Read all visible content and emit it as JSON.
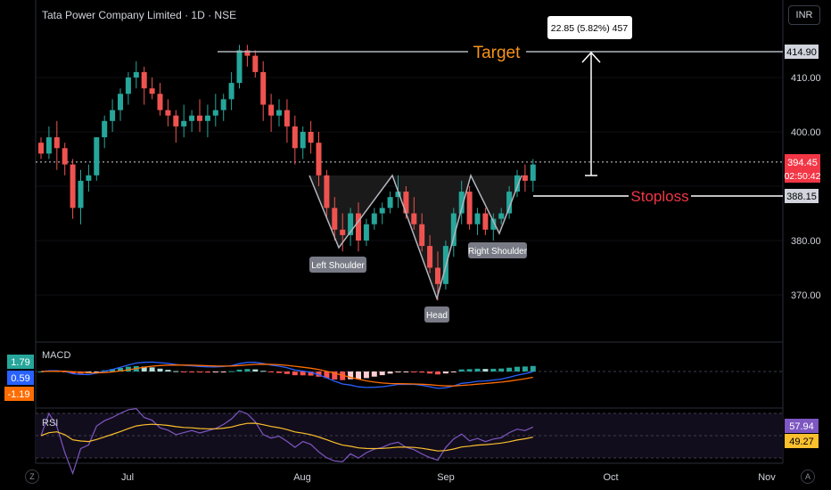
{
  "header": {
    "title": "Tata Power Company Limited · 1D · NSE"
  },
  "currency_button": "INR",
  "corner_left": "Z",
  "corner_right": "A",
  "colors": {
    "up": "#26a69a",
    "down": "#ef5350",
    "macd": "#2962ff",
    "signal": "#ff6d00",
    "rsi": "#7e57c2",
    "rsi_ma": "#fbc02d",
    "annotation": "#ffffff"
  },
  "price_axis": {
    "ticks": [
      "410.00",
      "400.00",
      "380.00",
      "370.00"
    ]
  },
  "badges": {
    "target": "414.90",
    "current": "394.45",
    "countdown": "02:50:42",
    "stoploss": "388.15",
    "macd_hist": "1.79",
    "macd": "0.59",
    "macd_signal": "-1.19",
    "rsi": "57.94",
    "rsi_ma": "49.27"
  },
  "annotations": {
    "target_label": "Target",
    "stoploss_label": "Stoploss",
    "measure_label": "22.85 (5.82%) 457",
    "left_shoulder": "Left Shoulder",
    "head": "Head",
    "right_shoulder": "Right Shoulder"
  },
  "panes": {
    "macd_label": "MACD",
    "rsi_label": "RSI"
  },
  "time_axis": {
    "labels": [
      "Jul",
      "Aug",
      "Sep",
      "Oct",
      "Nov"
    ]
  },
  "chart_data": {
    "type": "candlestick",
    "title": "Tata Power Company Limited · 1D · NSE",
    "y_range": [
      364,
      418
    ],
    "levels": {
      "target": 414.9,
      "current": 394.45,
      "stoploss": 388.15
    },
    "candles": [
      [
        398,
        399,
        395,
        396
      ],
      [
        396,
        401,
        395,
        399
      ],
      [
        399,
        402,
        393,
        397
      ],
      [
        397,
        398,
        392,
        394
      ],
      [
        394,
        395,
        384,
        386
      ],
      [
        386,
        393,
        383,
        391
      ],
      [
        391,
        394,
        389,
        392
      ],
      [
        392,
        399,
        391,
        399
      ],
      [
        399,
        403,
        397,
        402
      ],
      [
        402,
        406,
        400,
        404
      ],
      [
        404,
        408,
        402,
        407
      ],
      [
        407,
        411,
        405,
        410
      ],
      [
        410,
        413,
        408,
        411
      ],
      [
        411,
        412,
        405,
        408
      ],
      [
        408,
        410,
        406,
        407
      ],
      [
        407,
        409,
        403,
        404
      ],
      [
        404,
        406,
        401,
        403
      ],
      [
        403,
        404,
        398,
        401
      ],
      [
        401,
        405,
        399,
        402
      ],
      [
        402,
        404,
        400,
        403
      ],
      [
        403,
        406,
        400,
        402
      ],
      [
        402,
        405,
        399,
        403
      ],
      [
        403,
        407,
        401,
        404
      ],
      [
        404,
        407,
        402,
        406
      ],
      [
        406,
        411,
        404,
        409
      ],
      [
        409,
        416,
        408,
        415
      ],
      [
        415,
        416,
        412,
        414
      ],
      [
        414,
        415,
        410,
        411
      ],
      [
        411,
        413,
        402,
        405
      ],
      [
        405,
        407,
        400,
        403
      ],
      [
        403,
        406,
        401,
        404
      ],
      [
        404,
        406,
        398,
        401
      ],
      [
        401,
        403,
        394,
        397
      ],
      [
        397,
        401,
        395,
        400
      ],
      [
        400,
        402,
        396,
        398
      ],
      [
        398,
        400,
        390,
        392
      ],
      [
        392,
        393,
        384,
        386
      ],
      [
        386,
        388,
        380,
        382
      ],
      [
        382,
        385,
        378,
        381
      ],
      [
        381,
        386,
        379,
        385
      ],
      [
        385,
        387,
        378,
        380
      ],
      [
        380,
        384,
        379,
        383
      ],
      [
        383,
        386,
        382,
        385
      ],
      [
        385,
        387,
        383,
        386
      ],
      [
        386,
        389,
        385,
        388
      ],
      [
        388,
        392,
        386,
        389
      ],
      [
        389,
        390,
        384,
        385
      ],
      [
        385,
        388,
        382,
        383
      ],
      [
        383,
        385,
        378,
        379
      ],
      [
        379,
        381,
        374,
        375
      ],
      [
        375,
        378,
        369,
        372
      ],
      [
        372,
        380,
        371,
        379
      ],
      [
        379,
        386,
        377,
        385
      ],
      [
        385,
        391,
        383,
        389
      ],
      [
        389,
        390,
        382,
        383
      ],
      [
        383,
        386,
        381,
        385
      ],
      [
        385,
        386,
        381,
        382
      ],
      [
        382,
        385,
        380,
        384
      ],
      [
        384,
        386,
        383,
        385
      ],
      [
        385,
        390,
        384,
        389
      ],
      [
        389,
        393,
        388,
        392
      ],
      [
        392,
        394,
        389,
        391
      ],
      [
        391,
        395,
        389,
        394
      ]
    ],
    "macd_series": {
      "name": "MACD",
      "last": 0.59
    },
    "signal_series": {
      "name": "Signal",
      "last": -1.19
    },
    "histogram_last": 1.79,
    "rsi_series": {
      "name": "RSI",
      "last": 57.94
    },
    "rsi_ma_series": {
      "name": "RSI MA",
      "last": 49.27
    },
    "x_labels": [
      "Jul",
      "Aug",
      "Sep",
      "Oct",
      "Nov"
    ]
  }
}
